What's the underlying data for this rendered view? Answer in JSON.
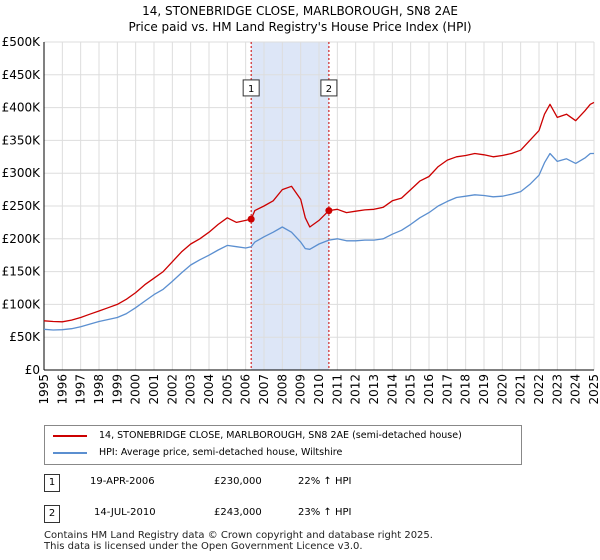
{
  "header": {
    "title_line1": "14, STONEBRIDGE CLOSE, MARLBOROUGH, SN8 2AE",
    "title_line2": "Price paid vs. HM Land Registry's House Price Index (HPI)"
  },
  "legend": {
    "property_label": "14, STONEBRIDGE CLOSE, MARLBOROUGH, SN8 2AE (semi-detached house)",
    "hpi_label": "HPI: Average price, semi-detached house, Wiltshire"
  },
  "transactions": [
    {
      "num": "1",
      "date": "19-APR-2006",
      "price": "£230,000",
      "hpi": "22% ↑ HPI"
    },
    {
      "num": "2",
      "date": "14-JUL-2010",
      "price": "£243,000",
      "hpi": "23% ↑ HPI"
    }
  ],
  "footer": {
    "line1": "Contains HM Land Registry data © Crown copyright and database right 2025.",
    "line2": "This data is licensed under the Open Government Licence v3.0."
  },
  "colors": {
    "property": "#cc0000",
    "hpi": "#5b8fd0",
    "shade": "#dde6f7",
    "grid": "#dddddd",
    "marker_line": "#cc0000"
  },
  "chart_data": {
    "type": "line",
    "title": "Price paid vs. HM Land Registry's House Price Index (HPI)",
    "xlabel": "",
    "ylabel": "",
    "xlim": [
      1995,
      2025
    ],
    "ylim": [
      0,
      500000
    ],
    "x_ticks": [
      1995,
      1996,
      1997,
      1998,
      1999,
      2000,
      2001,
      2002,
      2003,
      2004,
      2005,
      2006,
      2007,
      2008,
      2009,
      2010,
      2011,
      2012,
      2013,
      2014,
      2015,
      2016,
      2017,
      2018,
      2019,
      2020,
      2021,
      2022,
      2023,
      2024,
      2025
    ],
    "y_ticks": [
      {
        "value": 0,
        "label": "£0"
      },
      {
        "value": 50000,
        "label": "£50K"
      },
      {
        "value": 100000,
        "label": "£100K"
      },
      {
        "value": 150000,
        "label": "£150K"
      },
      {
        "value": 200000,
        "label": "£200K"
      },
      {
        "value": 250000,
        "label": "£250K"
      },
      {
        "value": 300000,
        "label": "£300K"
      },
      {
        "value": 350000,
        "label": "£350K"
      },
      {
        "value": 400000,
        "label": "£400K"
      },
      {
        "value": 450000,
        "label": "£450K"
      },
      {
        "value": 500000,
        "label": "£500K"
      }
    ],
    "shaded_span": [
      2006.3,
      2010.54
    ],
    "sale_markers": [
      {
        "label": "1",
        "x": 2006.3,
        "y": 230000
      },
      {
        "label": "2",
        "x": 2010.54,
        "y": 243000
      }
    ],
    "series": [
      {
        "name": "14, STONEBRIDGE CLOSE, MARLBOROUGH, SN8 2AE (semi-detached house)",
        "key": "property",
        "x": [
          1995,
          1995.5,
          1996,
          1996.5,
          1997,
          1997.5,
          1998,
          1998.5,
          1999,
          1999.5,
          2000,
          2000.5,
          2001,
          2001.5,
          2002,
          2002.5,
          2003,
          2003.5,
          2004,
          2004.5,
          2005,
          2005.5,
          2006,
          2006.3,
          2006.5,
          2007,
          2007.5,
          2008,
          2008.5,
          2009,
          2009.25,
          2009.5,
          2010,
          2010.54,
          2011,
          2011.5,
          2012,
          2012.5,
          2013,
          2013.5,
          2014,
          2014.5,
          2015,
          2015.5,
          2016,
          2016.5,
          2017,
          2017.5,
          2018,
          2018.5,
          2019,
          2019.5,
          2020,
          2020.5,
          2021,
          2021.5,
          2022,
          2022.3,
          2022.6,
          2023,
          2023.5,
          2024,
          2024.5,
          2024.8,
          2025
        ],
        "values": [
          75000,
          74000,
          73500,
          76000,
          80000,
          85000,
          90000,
          95000,
          100000,
          108000,
          118000,
          130000,
          140000,
          150000,
          165000,
          180000,
          192000,
          200000,
          210000,
          222000,
          232000,
          225000,
          228000,
          230000,
          243000,
          250000,
          258000,
          275000,
          280000,
          260000,
          232000,
          218000,
          228000,
          243000,
          245000,
          240000,
          242000,
          244000,
          245000,
          248000,
          258000,
          262000,
          275000,
          288000,
          295000,
          310000,
          320000,
          325000,
          327000,
          330000,
          328000,
          325000,
          327000,
          330000,
          335000,
          350000,
          365000,
          390000,
          405000,
          385000,
          390000,
          380000,
          395000,
          405000,
          408000
        ]
      },
      {
        "name": "HPI: Average price, semi-detached house, Wiltshire",
        "key": "hpi",
        "x": [
          1995,
          1995.5,
          1996,
          1996.5,
          1997,
          1997.5,
          1998,
          1998.5,
          1999,
          1999.5,
          2000,
          2000.5,
          2001,
          2001.5,
          2002,
          2002.5,
          2003,
          2003.5,
          2004,
          2004.5,
          2005,
          2005.5,
          2006,
          2006.3,
          2006.5,
          2007,
          2007.5,
          2008,
          2008.5,
          2009,
          2009.25,
          2009.5,
          2010,
          2010.54,
          2011,
          2011.5,
          2012,
          2012.5,
          2013,
          2013.5,
          2014,
          2014.5,
          2015,
          2015.5,
          2016,
          2016.5,
          2017,
          2017.5,
          2018,
          2018.5,
          2019,
          2019.5,
          2020,
          2020.5,
          2021,
          2021.5,
          2022,
          2022.3,
          2022.6,
          2023,
          2023.5,
          2024,
          2024.5,
          2024.8,
          2025
        ],
        "values": [
          62000,
          61000,
          61500,
          63000,
          66000,
          70000,
          74000,
          77000,
          80000,
          86000,
          95000,
          105000,
          115000,
          123000,
          135000,
          148000,
          160000,
          168000,
          175000,
          183000,
          190000,
          188000,
          186000,
          188000,
          195000,
          203000,
          210000,
          218000,
          210000,
          195000,
          185000,
          184000,
          192000,
          198000,
          200000,
          197000,
          197000,
          198000,
          198000,
          200000,
          207000,
          213000,
          222000,
          232000,
          240000,
          250000,
          257000,
          263000,
          265000,
          267000,
          266000,
          264000,
          265000,
          268000,
          272000,
          283000,
          297000,
          316000,
          330000,
          318000,
          322000,
          315000,
          323000,
          330000,
          330000
        ]
      }
    ]
  }
}
